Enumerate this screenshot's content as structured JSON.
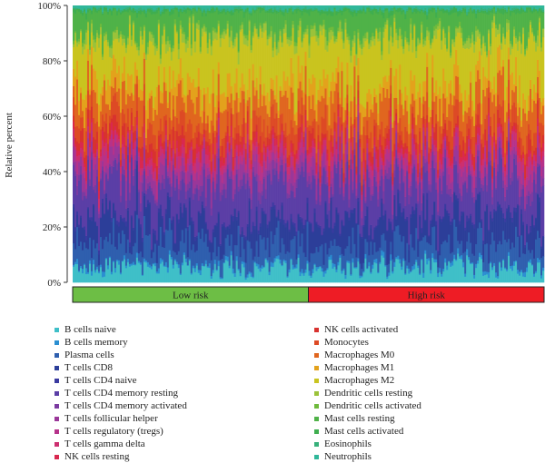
{
  "chart_data": {
    "type": "bar",
    "stacked": true,
    "ylabel": "Relative percent",
    "ylim": [
      0,
      100
    ],
    "yticks": [
      "0%",
      "20%",
      "40%",
      "60%",
      "80%",
      "100%"
    ],
    "samples_per_group": 130,
    "groups": [
      {
        "label": "Low risk",
        "color": "#6dbe45"
      },
      {
        "label": "High risk",
        "color": "#ee1c25"
      }
    ],
    "series": [
      {
        "name": "B cells naive",
        "color": "#3fbfc8",
        "mean": 5
      },
      {
        "name": "B cells memory",
        "color": "#2b8fd1",
        "mean": 1
      },
      {
        "name": "Plasma cells",
        "color": "#2f5fae",
        "mean": 7
      },
      {
        "name": "T cells CD8",
        "color": "#2c3e99",
        "mean": 8
      },
      {
        "name": "T cells CD4 naive",
        "color": "#3a3aa0",
        "mean": 1
      },
      {
        "name": "T cells CD4 memory resting",
        "color": "#5b3ea6",
        "mean": 12
      },
      {
        "name": "T cells CD4 memory activated",
        "color": "#7b3aa0",
        "mean": 2
      },
      {
        "name": "T cells follicular helper",
        "color": "#9a3799",
        "mean": 4
      },
      {
        "name": "T cells regulatory (tregs)",
        "color": "#b6328a",
        "mean": 3
      },
      {
        "name": "T cells gamma delta",
        "color": "#cc2f6f",
        "mean": 2
      },
      {
        "name": "NK cells resting",
        "color": "#d9284f",
        "mean": 2
      },
      {
        "name": "NK cells activated",
        "color": "#d8322f",
        "mean": 3
      },
      {
        "name": "Monocytes",
        "color": "#dd4a25",
        "mean": 5
      },
      {
        "name": "Macrophages M0",
        "color": "#e0661f",
        "mean": 8
      },
      {
        "name": "Macrophages M1",
        "color": "#e3a21c",
        "mean": 6
      },
      {
        "name": "Macrophages M2",
        "color": "#c9c41f",
        "mean": 14
      },
      {
        "name": "Dendritic cells resting",
        "color": "#9bc23a",
        "mean": 2
      },
      {
        "name": "Dendritic cells activated",
        "color": "#6fba3c",
        "mean": 1
      },
      {
        "name": "Mast cells resting",
        "color": "#4fb248",
        "mean": 7
      },
      {
        "name": "Mast cells activated",
        "color": "#3fae4f",
        "mean": 1
      },
      {
        "name": "Eosinophils",
        "color": "#37b07a",
        "mean": 0.5
      },
      {
        "name": "Neutrophils",
        "color": "#30b79a",
        "mean": 1
      }
    ]
  }
}
